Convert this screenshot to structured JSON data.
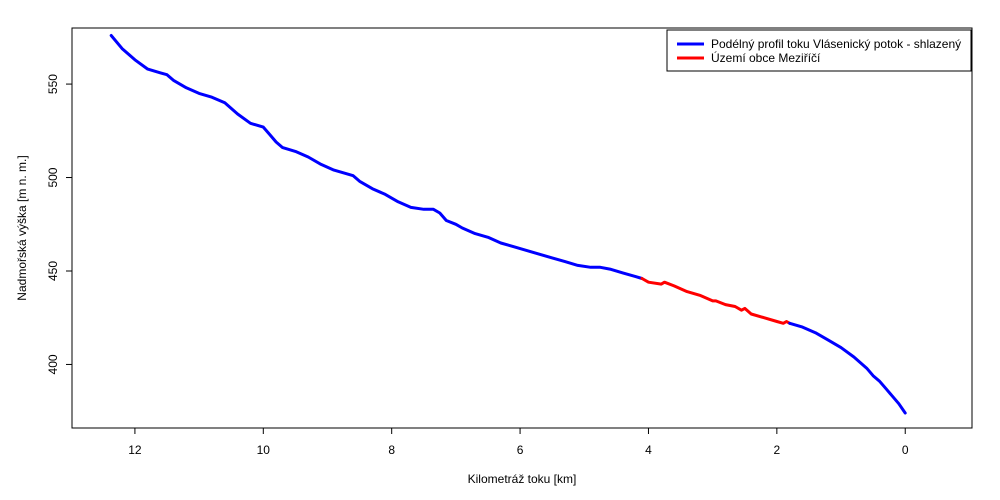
{
  "chart_data": {
    "type": "line",
    "xlabel": "Kilometráž toku [km]",
    "ylabel": "Nadmořská výška [m n. m.]",
    "xlim": [
      12.98,
      -1.04
    ],
    "ylim": [
      366,
      580
    ],
    "x_reversed": true,
    "grid": false,
    "legend_position": "top-right",
    "x_ticks": [
      12,
      10,
      8,
      6,
      4,
      2,
      0
    ],
    "y_ticks": [
      400,
      450,
      500,
      550
    ],
    "series": [
      {
        "name": "Podélný profil toku Vlásenický potok - shlazený",
        "color": "#0000ff",
        "x": [
          12.37,
          12.2,
          12.0,
          11.8,
          11.6,
          11.5,
          11.4,
          11.2,
          11.0,
          10.8,
          10.6,
          10.5,
          10.4,
          10.2,
          10.0,
          9.9,
          9.8,
          9.7,
          9.5,
          9.3,
          9.1,
          8.9,
          8.7,
          8.6,
          8.5,
          8.3,
          8.1,
          7.9,
          7.7,
          7.5,
          7.35,
          7.25,
          7.15,
          7.0,
          6.9,
          6.7,
          6.5,
          6.3,
          6.1,
          5.9,
          5.7,
          5.5,
          5.3,
          5.1,
          4.9,
          4.75,
          4.6,
          4.4,
          4.2,
          4.1
        ],
        "y": [
          576,
          569,
          563,
          558,
          556,
          555,
          552,
          548,
          545,
          543,
          540,
          537,
          534,
          529,
          527,
          523,
          519,
          516,
          514,
          511,
          507,
          504,
          502,
          501,
          498,
          494,
          491,
          487,
          484,
          483,
          483,
          481,
          477,
          475,
          473,
          470,
          468,
          465,
          463,
          461,
          459,
          457,
          455,
          453,
          452,
          452,
          451,
          449,
          447,
          446
        ]
      },
      {
        "name": "Území obce Meziříčí",
        "color": "#ff0000",
        "x": [
          4.1,
          4.0,
          3.8,
          3.75,
          3.6,
          3.4,
          3.2,
          3.0,
          2.95,
          2.8,
          2.65,
          2.55,
          2.5,
          2.4,
          2.2,
          2.0,
          1.9,
          1.85,
          1.8
        ],
        "y": [
          446,
          444,
          443,
          444,
          442,
          439,
          437,
          434,
          434,
          432,
          431,
          429,
          430,
          427,
          425,
          423,
          422,
          423,
          422
        ]
      },
      {
        "name": "",
        "color": "#0000ff",
        "x": [
          1.8,
          1.6,
          1.4,
          1.2,
          1.0,
          0.8,
          0.6,
          0.5,
          0.4,
          0.3,
          0.2,
          0.1,
          0.0
        ],
        "y": [
          422,
          420,
          417,
          413,
          409,
          404,
          398,
          394,
          391,
          387,
          383,
          379,
          374
        ]
      }
    ]
  }
}
